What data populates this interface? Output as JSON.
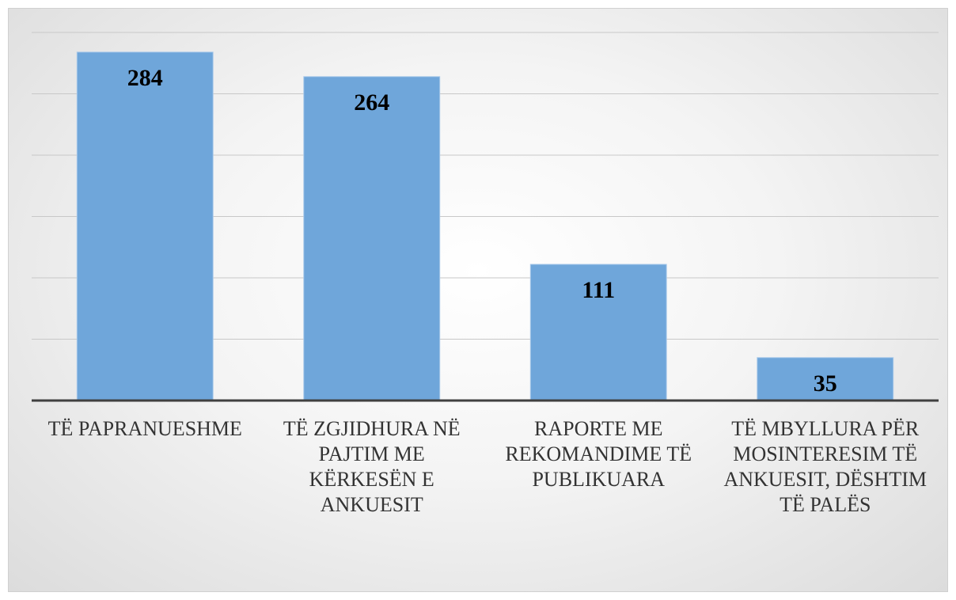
{
  "chart_data": {
    "type": "bar",
    "categories": [
      "TË PAPRANUESHME",
      "TË ZGJIDHURA NË PAJTIM ME KËRKESËN E ANKUESIT",
      "RAPORTE ME REKOMANDIME TË PUBLIKUARA",
      "TË MBYLLURA PËR MOSINTERESIM TË ANKUESIT, DËSHTIM TË PALËS"
    ],
    "values": [
      284,
      264,
      111,
      35
    ],
    "color": "#6fa6da",
    "ylim": [
      0,
      300
    ],
    "yticks": [
      0,
      50,
      100,
      150,
      200,
      250,
      300
    ],
    "grid": true
  }
}
